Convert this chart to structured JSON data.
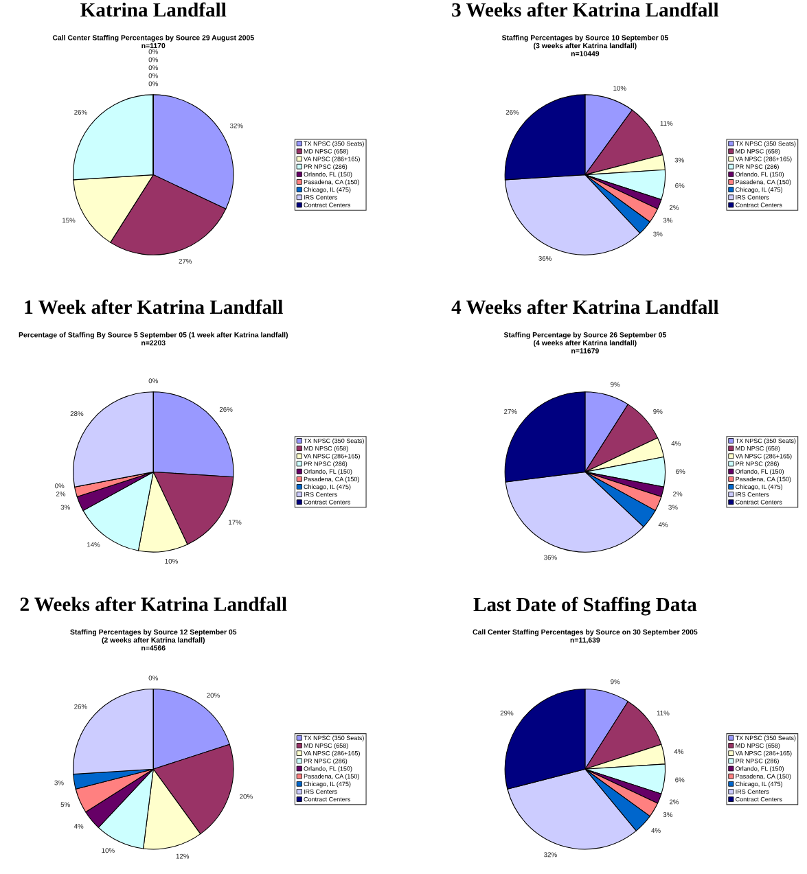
{
  "chart_data": [
    {
      "type": "pie",
      "title": "Katrina Landfall",
      "subtitle": "Call Center Staffing Percentages by Source 29 August 2005\nn=1170",
      "legend": "right",
      "categories": [
        "TX NPSC (350 Seats)",
        "MD NPSC (658)",
        "VA NPSC (286+165)",
        "PR NPSC (286)",
        "Orlando, FL (150)",
        "Pasadena, CA (150)",
        "Chicago, IL (475)",
        "IRS Centers",
        "Contract Centers"
      ],
      "values": [
        32,
        27,
        15,
        26,
        0,
        0,
        0,
        0,
        0
      ],
      "value_labels": [
        "32%",
        "27%",
        "15%",
        "26%",
        "0%",
        "0%",
        "0%",
        "0%",
        "0%"
      ],
      "colors": [
        "#9999ff",
        "#993366",
        "#ffffcc",
        "#ccffff",
        "#660066",
        "#ff8080",
        "#0066cc",
        "#ccccff",
        "#000080"
      ]
    },
    {
      "type": "pie",
      "title": "3 Weeks after Katrina Landfall",
      "subtitle": "Staffing Percentages by Source 10 September 05\n(3 weeks after Katrina landfall)\nn=10449",
      "legend": "right",
      "categories": [
        "TX NPSC (350 Seats)",
        "MD NPSC (658)",
        "VA NPSC (286+165)",
        "PR NPSC (286)",
        "Orlando, FL (150)",
        "Pasadena, CA (150)",
        "Chicago, IL (475)",
        "IRS Centers",
        "Contract Centers"
      ],
      "values": [
        10,
        11,
        3,
        6,
        2,
        3,
        3,
        36,
        26
      ],
      "value_labels": [
        "10%",
        "11%",
        "3%",
        "6%",
        "2%",
        "3%",
        "3%",
        "36%",
        "26%"
      ],
      "colors": [
        "#9999ff",
        "#993366",
        "#ffffcc",
        "#ccffff",
        "#660066",
        "#ff8080",
        "#0066cc",
        "#ccccff",
        "#000080"
      ]
    },
    {
      "type": "pie",
      "title": "1 Week after Katrina Landfall",
      "subtitle": "Percentage of Staffing By Source 5 September 05 (1 week after Katrina landfall)\nn=2203",
      "legend": "right",
      "categories": [
        "TX NPSC (350 Seats)",
        "MD NPSC (658)",
        "VA NPSC (286+165)",
        "PR NPSC (286)",
        "Orlando, FL (150)",
        "Pasadena, CA (150)",
        "Chicago, IL (475)",
        "IRS Centers",
        "Contract Centers"
      ],
      "values": [
        26,
        17,
        10,
        14,
        3,
        2,
        0,
        28,
        0
      ],
      "value_labels": [
        "26%",
        "17%",
        "10%",
        "14%",
        "3%",
        "2%",
        "0%",
        "28%",
        "0%"
      ],
      "colors": [
        "#9999ff",
        "#993366",
        "#ffffcc",
        "#ccffff",
        "#660066",
        "#ff8080",
        "#0066cc",
        "#ccccff",
        "#000080"
      ]
    },
    {
      "type": "pie",
      "title": "4 Weeks after Katrina Landfall",
      "subtitle": "Staffing Percentage by Source 26 September 05\n(4 weeks after Katrina landfall)\nn=11679",
      "legend": "right",
      "categories": [
        "TX NPSC (350 Seats)",
        "MD NPSC (658)",
        "VA NPSC (286+165)",
        "PR NPSC (286)",
        "Orlando, FL (150)",
        "Pasadena, CA (150)",
        "Chicago, IL (475)",
        "IRS Centers",
        "Contract Centers"
      ],
      "values": [
        9,
        9,
        4,
        6,
        2,
        3,
        4,
        36,
        27
      ],
      "value_labels": [
        "9%",
        "9%",
        "4%",
        "6%",
        "2%",
        "3%",
        "4%",
        "36%",
        "27%"
      ],
      "colors": [
        "#9999ff",
        "#993366",
        "#ffffcc",
        "#ccffff",
        "#660066",
        "#ff8080",
        "#0066cc",
        "#ccccff",
        "#000080"
      ]
    },
    {
      "type": "pie",
      "title": "2 Weeks after Katrina Landfall",
      "subtitle": "Staffing Percentages by Source 12 September 05\n(2 weeks after Katrina landfall)\nn=4566",
      "legend": "right",
      "categories": [
        "TX NPSC (350 Seats)",
        "MD NPSC (658)",
        "VA NPSC (286+165)",
        "PR NPSC (286)",
        "Orlando, FL (150)",
        "Pasadena, CA (150)",
        "Chicago, IL (475)",
        "IRS Centers",
        "Contract Centers"
      ],
      "values": [
        20,
        20,
        12,
        10,
        4,
        5,
        3,
        26,
        0
      ],
      "value_labels": [
        "20%",
        "20%",
        "12%",
        "10%",
        "4%",
        "5%",
        "3%",
        "26%",
        "0%"
      ],
      "colors": [
        "#9999ff",
        "#993366",
        "#ffffcc",
        "#ccffff",
        "#660066",
        "#ff8080",
        "#0066cc",
        "#ccccff",
        "#000080"
      ]
    },
    {
      "type": "pie",
      "title": "Last Date of Staffing Data",
      "subtitle": "Call Center Staffing Percentages by Source on 30 September 2005\nn=11,639",
      "legend": "right",
      "categories": [
        "TX NPSC (350 Seats)",
        "MD NPSC (658)",
        "VA NPSC (286+165)",
        "PR NPSC (286)",
        "Orlando, FL (150)",
        "Pasadena, CA (150)",
        "Chicago, IL (475)",
        "IRS Centers",
        "Contract Centers"
      ],
      "values": [
        9,
        11,
        4,
        6,
        2,
        3,
        4,
        32,
        29
      ],
      "value_labels": [
        "9%",
        "11%",
        "4%",
        "6%",
        "2%",
        "3%",
        "4%",
        "32%",
        "29%"
      ],
      "colors": [
        "#9999ff",
        "#993366",
        "#ffffcc",
        "#ccffff",
        "#660066",
        "#ff8080",
        "#0066cc",
        "#ccccff",
        "#000080"
      ]
    }
  ]
}
